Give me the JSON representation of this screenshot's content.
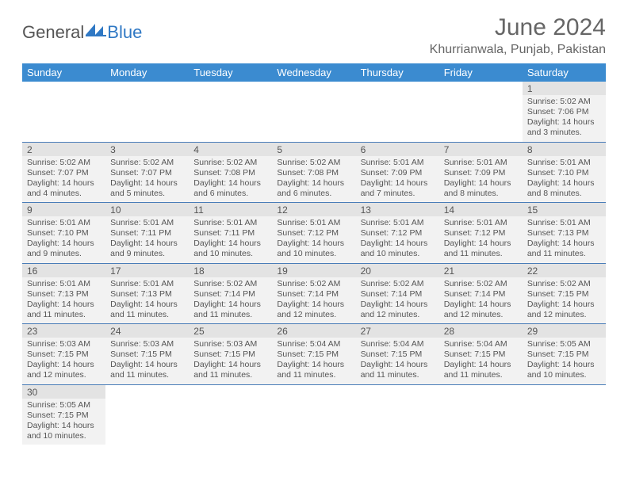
{
  "brand": {
    "part1": "General",
    "part2": "Blue"
  },
  "header": {
    "month_title": "June 2024",
    "location": "Khurrianwala, Punjab, Pakistan"
  },
  "colors": {
    "header_bg": "#3b8bd0",
    "header_text": "#ffffff",
    "row_divider": "#4a7db8",
    "cell_bg": "#f2f2f2",
    "daynum_bg": "#e3e3e3",
    "text": "#555555",
    "logo_accent": "#2f78c4"
  },
  "typography": {
    "title_fontsize_pt": 22,
    "location_fontsize_pt": 12,
    "dayheader_fontsize_pt": 10,
    "body_fontsize_pt": 8
  },
  "day_headers": [
    "Sunday",
    "Monday",
    "Tuesday",
    "Wednesday",
    "Thursday",
    "Friday",
    "Saturday"
  ],
  "weeks": [
    [
      null,
      null,
      null,
      null,
      null,
      null,
      {
        "n": "1",
        "sunrise": "Sunrise: 5:02 AM",
        "sunset": "Sunset: 7:06 PM",
        "daylight": "Daylight: 14 hours and 3 minutes."
      }
    ],
    [
      {
        "n": "2",
        "sunrise": "Sunrise: 5:02 AM",
        "sunset": "Sunset: 7:07 PM",
        "daylight": "Daylight: 14 hours and 4 minutes."
      },
      {
        "n": "3",
        "sunrise": "Sunrise: 5:02 AM",
        "sunset": "Sunset: 7:07 PM",
        "daylight": "Daylight: 14 hours and 5 minutes."
      },
      {
        "n": "4",
        "sunrise": "Sunrise: 5:02 AM",
        "sunset": "Sunset: 7:08 PM",
        "daylight": "Daylight: 14 hours and 6 minutes."
      },
      {
        "n": "5",
        "sunrise": "Sunrise: 5:02 AM",
        "sunset": "Sunset: 7:08 PM",
        "daylight": "Daylight: 14 hours and 6 minutes."
      },
      {
        "n": "6",
        "sunrise": "Sunrise: 5:01 AM",
        "sunset": "Sunset: 7:09 PM",
        "daylight": "Daylight: 14 hours and 7 minutes."
      },
      {
        "n": "7",
        "sunrise": "Sunrise: 5:01 AM",
        "sunset": "Sunset: 7:09 PM",
        "daylight": "Daylight: 14 hours and 8 minutes."
      },
      {
        "n": "8",
        "sunrise": "Sunrise: 5:01 AM",
        "sunset": "Sunset: 7:10 PM",
        "daylight": "Daylight: 14 hours and 8 minutes."
      }
    ],
    [
      {
        "n": "9",
        "sunrise": "Sunrise: 5:01 AM",
        "sunset": "Sunset: 7:10 PM",
        "daylight": "Daylight: 14 hours and 9 minutes."
      },
      {
        "n": "10",
        "sunrise": "Sunrise: 5:01 AM",
        "sunset": "Sunset: 7:11 PM",
        "daylight": "Daylight: 14 hours and 9 minutes."
      },
      {
        "n": "11",
        "sunrise": "Sunrise: 5:01 AM",
        "sunset": "Sunset: 7:11 PM",
        "daylight": "Daylight: 14 hours and 10 minutes."
      },
      {
        "n": "12",
        "sunrise": "Sunrise: 5:01 AM",
        "sunset": "Sunset: 7:12 PM",
        "daylight": "Daylight: 14 hours and 10 minutes."
      },
      {
        "n": "13",
        "sunrise": "Sunrise: 5:01 AM",
        "sunset": "Sunset: 7:12 PM",
        "daylight": "Daylight: 14 hours and 10 minutes."
      },
      {
        "n": "14",
        "sunrise": "Sunrise: 5:01 AM",
        "sunset": "Sunset: 7:12 PM",
        "daylight": "Daylight: 14 hours and 11 minutes."
      },
      {
        "n": "15",
        "sunrise": "Sunrise: 5:01 AM",
        "sunset": "Sunset: 7:13 PM",
        "daylight": "Daylight: 14 hours and 11 minutes."
      }
    ],
    [
      {
        "n": "16",
        "sunrise": "Sunrise: 5:01 AM",
        "sunset": "Sunset: 7:13 PM",
        "daylight": "Daylight: 14 hours and 11 minutes."
      },
      {
        "n": "17",
        "sunrise": "Sunrise: 5:01 AM",
        "sunset": "Sunset: 7:13 PM",
        "daylight": "Daylight: 14 hours and 11 minutes."
      },
      {
        "n": "18",
        "sunrise": "Sunrise: 5:02 AM",
        "sunset": "Sunset: 7:14 PM",
        "daylight": "Daylight: 14 hours and 11 minutes."
      },
      {
        "n": "19",
        "sunrise": "Sunrise: 5:02 AM",
        "sunset": "Sunset: 7:14 PM",
        "daylight": "Daylight: 14 hours and 12 minutes."
      },
      {
        "n": "20",
        "sunrise": "Sunrise: 5:02 AM",
        "sunset": "Sunset: 7:14 PM",
        "daylight": "Daylight: 14 hours and 12 minutes."
      },
      {
        "n": "21",
        "sunrise": "Sunrise: 5:02 AM",
        "sunset": "Sunset: 7:14 PM",
        "daylight": "Daylight: 14 hours and 12 minutes."
      },
      {
        "n": "22",
        "sunrise": "Sunrise: 5:02 AM",
        "sunset": "Sunset: 7:15 PM",
        "daylight": "Daylight: 14 hours and 12 minutes."
      }
    ],
    [
      {
        "n": "23",
        "sunrise": "Sunrise: 5:03 AM",
        "sunset": "Sunset: 7:15 PM",
        "daylight": "Daylight: 14 hours and 12 minutes."
      },
      {
        "n": "24",
        "sunrise": "Sunrise: 5:03 AM",
        "sunset": "Sunset: 7:15 PM",
        "daylight": "Daylight: 14 hours and 11 minutes."
      },
      {
        "n": "25",
        "sunrise": "Sunrise: 5:03 AM",
        "sunset": "Sunset: 7:15 PM",
        "daylight": "Daylight: 14 hours and 11 minutes."
      },
      {
        "n": "26",
        "sunrise": "Sunrise: 5:04 AM",
        "sunset": "Sunset: 7:15 PM",
        "daylight": "Daylight: 14 hours and 11 minutes."
      },
      {
        "n": "27",
        "sunrise": "Sunrise: 5:04 AM",
        "sunset": "Sunset: 7:15 PM",
        "daylight": "Daylight: 14 hours and 11 minutes."
      },
      {
        "n": "28",
        "sunrise": "Sunrise: 5:04 AM",
        "sunset": "Sunset: 7:15 PM",
        "daylight": "Daylight: 14 hours and 11 minutes."
      },
      {
        "n": "29",
        "sunrise": "Sunrise: 5:05 AM",
        "sunset": "Sunset: 7:15 PM",
        "daylight": "Daylight: 14 hours and 10 minutes."
      }
    ],
    [
      {
        "n": "30",
        "sunrise": "Sunrise: 5:05 AM",
        "sunset": "Sunset: 7:15 PM",
        "daylight": "Daylight: 14 hours and 10 minutes."
      },
      null,
      null,
      null,
      null,
      null,
      null
    ]
  ]
}
